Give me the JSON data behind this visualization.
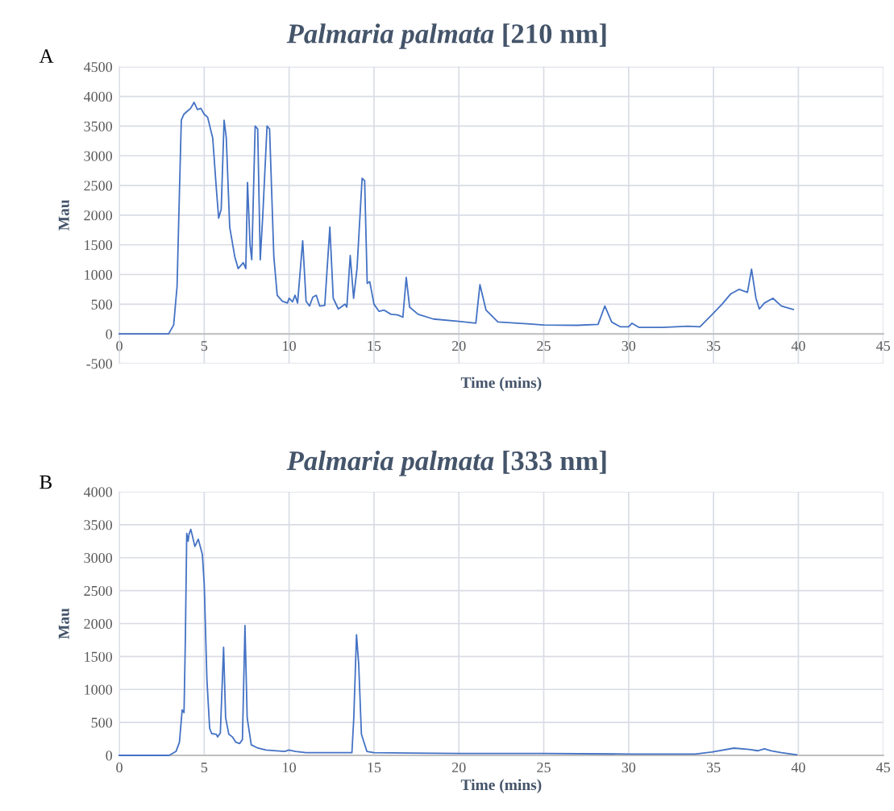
{
  "chart_data": [
    {
      "type": "line",
      "title": "Palmaria palmata [210 nm]",
      "xlabel": "Time (mins)",
      "ylabel": "Mau",
      "annotations": [
        "A"
      ],
      "xlim": [
        0,
        45
      ],
      "xticks": [
        0,
        5,
        10,
        15,
        20,
        25,
        30,
        35,
        40,
        45
      ],
      "ylim": [
        -500,
        4500
      ],
      "yticks": [
        -500,
        0,
        500,
        1000,
        1500,
        2000,
        2500,
        3000,
        3500,
        4000,
        4500
      ],
      "grid": true,
      "marker": "none",
      "line_style": "solid",
      "series": [
        {
          "color": "#4472c4",
          "x": [
            0,
            2.9,
            3.2,
            3.4,
            3.55,
            3.65,
            3.8,
            4.0,
            4.2,
            4.4,
            4.6,
            4.8,
            5.0,
            5.2,
            5.5,
            5.7,
            5.85,
            6.0,
            6.17,
            6.3,
            6.5,
            6.8,
            7.0,
            7.3,
            7.45,
            7.55,
            7.7,
            7.8,
            8.0,
            8.15,
            8.3,
            8.45,
            8.7,
            8.85,
            9.1,
            9.3,
            9.6,
            9.9,
            10.0,
            10.2,
            10.35,
            10.5,
            10.8,
            11.0,
            11.2,
            11.4,
            11.6,
            11.8,
            12.1,
            12.4,
            12.6,
            12.9,
            13.3,
            13.4,
            13.6,
            13.8,
            14.0,
            14.3,
            14.45,
            14.6,
            14.75,
            15.0,
            15.3,
            15.6,
            16.0,
            16.4,
            16.7,
            16.9,
            17.1,
            17.6,
            18.5,
            20,
            21,
            21.24,
            21.6,
            22.3,
            24,
            25,
            27,
            28.2,
            28.6,
            29.0,
            29.5,
            30.0,
            30.2,
            30.6,
            32,
            33.5,
            34.2,
            35.0,
            35.5,
            36.0,
            36.5,
            37.0,
            37.24,
            37.5,
            37.7,
            38.0,
            38.5,
            39.0,
            39.7
          ],
          "values": [
            0,
            0,
            150,
            800,
            2500,
            3600,
            3700,
            3750,
            3800,
            3900,
            3780,
            3800,
            3700,
            3650,
            3300,
            2500,
            1950,
            2100,
            3600,
            3300,
            1800,
            1300,
            1100,
            1200,
            1100,
            2550,
            1500,
            1250,
            3500,
            3450,
            1250,
            2000,
            3500,
            3450,
            1300,
            650,
            550,
            520,
            600,
            540,
            650,
            520,
            1570,
            550,
            470,
            620,
            650,
            470,
            480,
            1800,
            600,
            420,
            500,
            450,
            1320,
            600,
            1100,
            2620,
            2580,
            850,
            880,
            500,
            380,
            400,
            330,
            320,
            280,
            950,
            450,
            330,
            250,
            210,
            180,
            830,
            400,
            200,
            170,
            150,
            145,
            160,
            470,
            200,
            120,
            120,
            180,
            110,
            110,
            130,
            120,
            350,
            500,
            670,
            750,
            700,
            1090,
            600,
            420,
            520,
            600,
            470,
            410
          ]
        }
      ]
    },
    {
      "type": "line",
      "title": "Palmaria palmata [333 nm]",
      "xlabel": "Time (mins)",
      "ylabel": "Mau",
      "annotations": [
        "B"
      ],
      "xlim": [
        0,
        45
      ],
      "xticks": [
        0,
        5,
        10,
        15,
        20,
        25,
        30,
        35,
        40,
        45
      ],
      "ylim": [
        0,
        4000
      ],
      "yticks": [
        0,
        500,
        1000,
        1500,
        2000,
        2500,
        3000,
        3500,
        4000
      ],
      "grid": true,
      "marker": "none",
      "line_style": "solid",
      "series": [
        {
          "color": "#4472c4",
          "x": [
            0,
            2.94,
            3.34,
            3.54,
            3.7,
            3.81,
            3.89,
            3.97,
            4.05,
            4.1,
            4.21,
            4.45,
            4.65,
            4.89,
            5.0,
            5.16,
            5.32,
            5.44,
            5.71,
            5.79,
            5.95,
            6.14,
            6.26,
            6.45,
            6.66,
            6.86,
            7.09,
            7.25,
            7.4,
            7.53,
            7.77,
            8.16,
            8.64,
            9.75,
            9.98,
            10.38,
            11.0,
            13.07,
            13.7,
            13.81,
            13.97,
            14.1,
            14.26,
            14.58,
            15.0,
            20,
            25,
            30,
            33.9,
            34.9,
            36.2,
            37.1,
            37.6,
            38.0,
            38.4,
            39.0,
            39.9
          ],
          "values": [
            0,
            0,
            60,
            200,
            690,
            650,
            1790,
            3370,
            3250,
            3350,
            3430,
            3170,
            3280,
            3050,
            2600,
            1140,
            410,
            330,
            320,
            280,
            340,
            1640,
            570,
            320,
            280,
            200,
            180,
            240,
            1970,
            570,
            160,
            110,
            80,
            60,
            80,
            60,
            40,
            40,
            40,
            570,
            1830,
            1380,
            320,
            60,
            40,
            30,
            30,
            20,
            20,
            50,
            110,
            90,
            70,
            100,
            70,
            40,
            10
          ]
        }
      ]
    }
  ]
}
